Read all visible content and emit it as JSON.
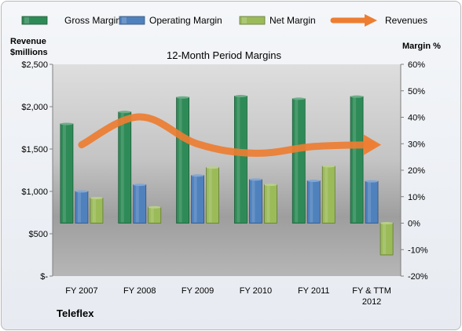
{
  "chart_data": {
    "type": "bar",
    "title": "12-Month Period Margins",
    "company": "Teleflex",
    "categories": [
      "FY 2007",
      "FY 2008",
      "FY 2009",
      "FY 2010",
      "FY 2011",
      "FY & TTM 2012"
    ],
    "ylabel_left": "Revenue $millions",
    "ylabel_right": "Margin %",
    "y_left": {
      "min": 0,
      "max": 2500,
      "step": 500,
      "tick_labels": [
        "$-",
        "$500",
        "$1,000",
        "$1,500",
        "$2,000",
        "$2,500"
      ]
    },
    "y_right": {
      "min": -20,
      "max": 60,
      "step": 10,
      "tick_labels": [
        "-20%",
        "-10%",
        "0%",
        "10%",
        "20%",
        "30%",
        "40%",
        "50%",
        "60%"
      ]
    },
    "series": [
      {
        "name": "Gross Margin",
        "kind": "bar",
        "axis": "right",
        "color": "#2e8b57",
        "values": [
          37.5,
          42,
          47.5,
          48,
          47,
          47.8
        ]
      },
      {
        "name": "Operating Margin",
        "kind": "bar",
        "axis": "right",
        "color": "#4f81bd",
        "values": [
          12,
          14.5,
          18,
          16.5,
          16,
          15.8
        ]
      },
      {
        "name": "Net Margin",
        "kind": "bar",
        "axis": "right",
        "color": "#9bbb59",
        "values": [
          9.5,
          6,
          21,
          14.5,
          21.5,
          -12
        ]
      },
      {
        "name": "Revenues",
        "kind": "line",
        "axis": "left",
        "color": "#ed7d31",
        "values": [
          1550,
          1880,
          1560,
          1450,
          1530,
          1550
        ]
      }
    ],
    "legend_position": "top",
    "grid": false
  }
}
